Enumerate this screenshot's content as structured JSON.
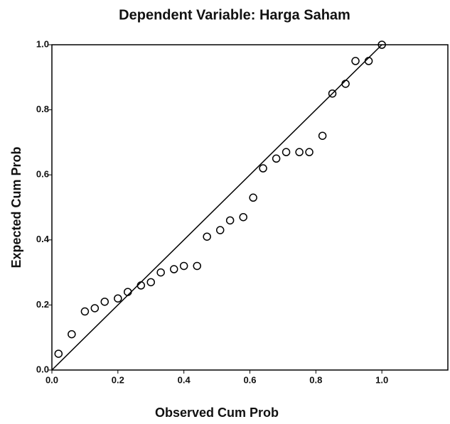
{
  "chart_data": {
    "type": "scatter",
    "title": "Dependent Variable: Harga Saham",
    "x_label": "Observed Cum Prob",
    "y_label": "Expected Cum Prob",
    "x": [
      0.02,
      0.06,
      0.1,
      0.13,
      0.16,
      0.2,
      0.23,
      0.27,
      0.3,
      0.33,
      0.37,
      0.4,
      0.44,
      0.47,
      0.51,
      0.54,
      0.58,
      0.61,
      0.64,
      0.68,
      0.71,
      0.75,
      0.78,
      0.82,
      0.85,
      0.89,
      0.92,
      0.96,
      1.0
    ],
    "values": [
      0.05,
      0.11,
      0.18,
      0.19,
      0.21,
      0.22,
      0.24,
      0.26,
      0.27,
      0.3,
      0.31,
      0.32,
      0.32,
      0.41,
      0.43,
      0.46,
      0.47,
      0.53,
      0.62,
      0.65,
      0.67,
      0.67,
      0.67,
      0.72,
      0.85,
      0.88,
      0.95,
      0.95,
      1.0
    ],
    "color": "#000000",
    "xlim": [
      0,
      1.2
    ],
    "ylim": [
      0,
      1
    ],
    "xticks": [
      {
        "value": 0,
        "label": "0.0"
      },
      0.2,
      0.4,
      0.6,
      0.8,
      {
        "value": 1,
        "label": "1.0"
      }
    ],
    "yticks": [
      {
        "value": 0,
        "label": "0.0"
      },
      0.2,
      0.4,
      0.6,
      0.8,
      {
        "value": 1,
        "label": "1.0"
      }
    ]
  }
}
